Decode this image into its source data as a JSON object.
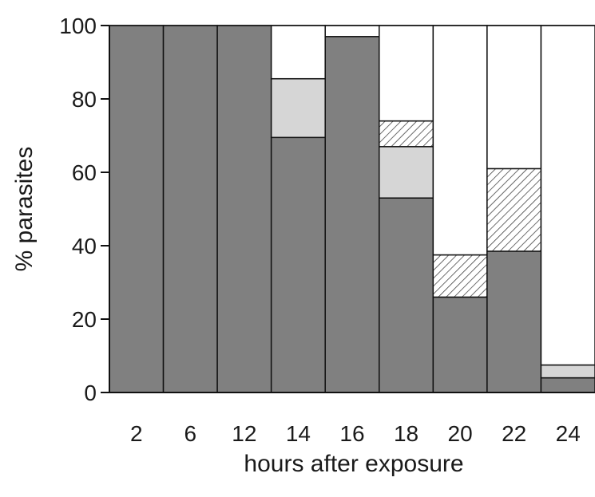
{
  "chart_data": {
    "type": "bar",
    "stacked": true,
    "title": "",
    "xlabel": "hours after exposure",
    "ylabel": "% parasites",
    "ylim": [
      0,
      100
    ],
    "yticks": [
      0,
      20,
      40,
      60,
      80,
      100
    ],
    "grid": false,
    "legend": "none",
    "categories": [
      "2",
      "6",
      "12",
      "14",
      "16",
      "18",
      "20",
      "22",
      "24"
    ],
    "series": [
      {
        "fill": "solid-dark-gray",
        "color": "#808080",
        "values": [
          100,
          100,
          100,
          69.5,
          97,
          53,
          26,
          38.5,
          4
        ]
      },
      {
        "fill": "solid-light-gray",
        "color": "#d6d6d6",
        "values": [
          0,
          0,
          0,
          16,
          0,
          14,
          0,
          0,
          3.5
        ]
      },
      {
        "fill": "diagonal-hatch",
        "color": "#ffffff",
        "values": [
          0,
          0,
          0,
          0,
          0,
          7,
          11.5,
          22.5,
          0
        ]
      },
      {
        "fill": "white",
        "color": "#ffffff",
        "values": [
          0,
          0,
          0,
          14.5,
          3,
          26,
          62.5,
          39,
          92.5
        ]
      }
    ]
  }
}
